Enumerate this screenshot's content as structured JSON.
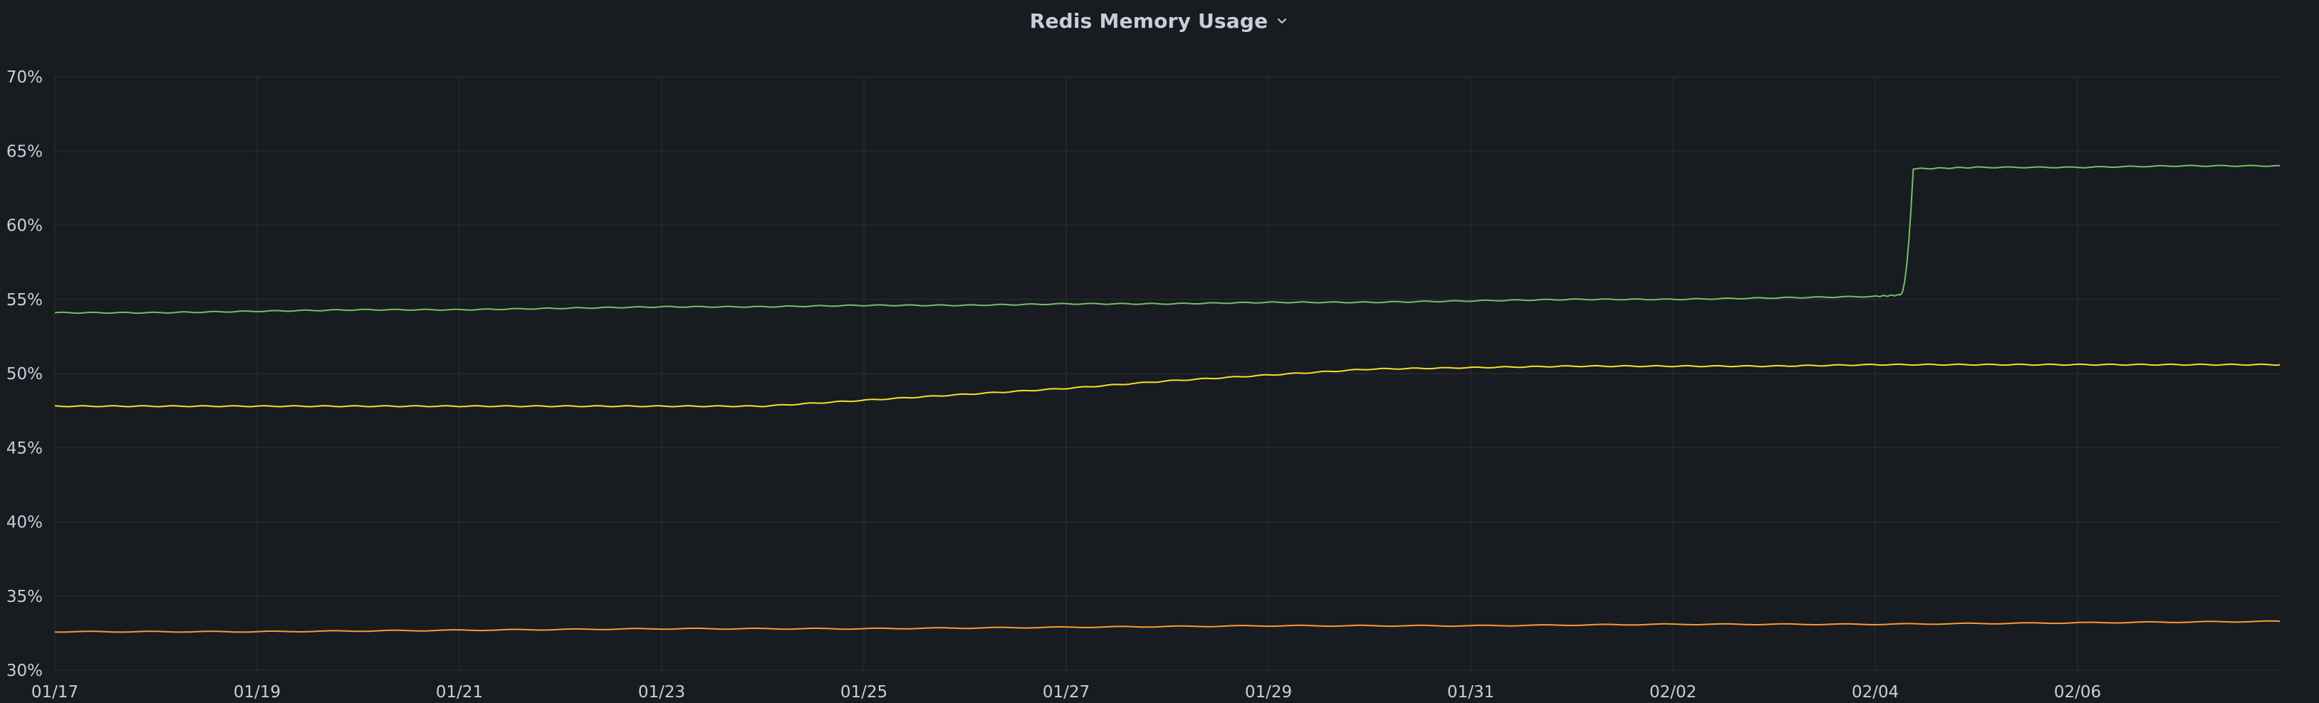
{
  "panel": {
    "title": "Redis Memory Usage"
  },
  "icons": {
    "title_menu": "chevron-down-icon"
  },
  "colors": {
    "background": "#181b1f",
    "grid": "#2c2f35",
    "text": "#ccccdc",
    "series_green": "#73bf69",
    "series_yellow": "#fade2a",
    "series_orange": "#ff9830"
  },
  "chart_data": {
    "type": "line",
    "title": "Redis Memory Usage",
    "xlabel": "",
    "ylabel": "",
    "ylim": [
      30,
      70
    ],
    "yticks": [
      "30%",
      "35%",
      "40%",
      "45%",
      "50%",
      "55%",
      "60%",
      "65%",
      "70%"
    ],
    "xlim": [
      "2025-01-17",
      "2025-02-08"
    ],
    "xticks": [
      "01/17",
      "01/19",
      "01/21",
      "01/23",
      "01/25",
      "01/27",
      "01/29",
      "01/31",
      "02/02",
      "02/04",
      "02/06"
    ],
    "grid": true,
    "legend": "none",
    "series": [
      {
        "color": "#73bf69",
        "points": [
          [
            "01/17",
            54.1
          ],
          [
            "01/18",
            54.1
          ],
          [
            "01/19",
            54.2
          ],
          [
            "01/20",
            54.3
          ],
          [
            "01/21",
            54.3
          ],
          [
            "01/22",
            54.4
          ],
          [
            "01/23",
            54.5
          ],
          [
            "01/24",
            54.5
          ],
          [
            "01/25",
            54.6
          ],
          [
            "01/26",
            54.6
          ],
          [
            "01/27",
            54.7
          ],
          [
            "01/28",
            54.7
          ],
          [
            "01/29",
            54.8
          ],
          [
            "01/30",
            54.8
          ],
          [
            "01/31",
            54.9
          ],
          [
            "02/01",
            55.0
          ],
          [
            "02/02",
            55.0
          ],
          [
            "02/03",
            55.1
          ],
          [
            "02/04",
            55.2
          ],
          [
            "02/04 06:00",
            55.3
          ],
          [
            "02/04 09:00",
            63.8
          ],
          [
            "02/05",
            63.9
          ],
          [
            "02/06",
            63.9
          ],
          [
            "02/07",
            64.0
          ],
          [
            "02/08",
            64.0
          ]
        ]
      },
      {
        "color": "#fade2a",
        "points": [
          [
            "01/17",
            47.8
          ],
          [
            "01/18",
            47.8
          ],
          [
            "01/19",
            47.8
          ],
          [
            "01/20",
            47.8
          ],
          [
            "01/21",
            47.8
          ],
          [
            "01/22",
            47.8
          ],
          [
            "01/23",
            47.8
          ],
          [
            "01/24",
            47.8
          ],
          [
            "01/25",
            48.2
          ],
          [
            "01/26",
            48.6
          ],
          [
            "01/27",
            49.0
          ],
          [
            "01/28",
            49.5
          ],
          [
            "01/29",
            49.9
          ],
          [
            "01/30",
            50.3
          ],
          [
            "01/31",
            50.4
          ],
          [
            "02/01",
            50.5
          ],
          [
            "02/02",
            50.5
          ],
          [
            "02/03",
            50.5
          ],
          [
            "02/04",
            50.6
          ],
          [
            "02/05",
            50.6
          ],
          [
            "02/06",
            50.6
          ],
          [
            "02/07",
            50.6
          ],
          [
            "02/08",
            50.6
          ]
        ]
      },
      {
        "color": "#ff9830",
        "points": [
          [
            "01/17",
            32.6
          ],
          [
            "01/19",
            32.6
          ],
          [
            "01/21",
            32.7
          ],
          [
            "01/23",
            32.8
          ],
          [
            "01/25",
            32.8
          ],
          [
            "01/27",
            32.9
          ],
          [
            "01/29",
            33.0
          ],
          [
            "01/31",
            33.0
          ],
          [
            "02/02",
            33.1
          ],
          [
            "02/04",
            33.1
          ],
          [
            "02/06",
            33.2
          ],
          [
            "02/08",
            33.3
          ]
        ]
      }
    ]
  }
}
